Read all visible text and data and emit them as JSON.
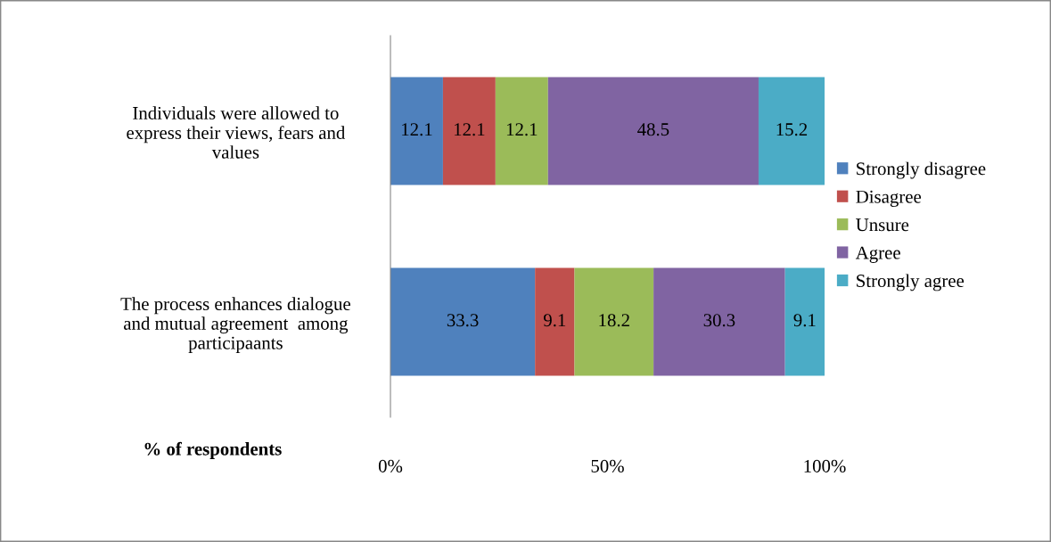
{
  "chart_data": {
    "type": "bar",
    "orientation": "horizontal",
    "stacked": true,
    "xlabel": "% of respondents",
    "categories": [
      "Individuals were allowed to express their views, fears and values",
      "The process enhances dialogue and mutual agreement  among participaants"
    ],
    "series": [
      {
        "name": "Strongly disagree",
        "color": "#4f81bd",
        "values": [
          12.1,
          33.3
        ]
      },
      {
        "name": "Disagree",
        "color": "#c0504d",
        "values": [
          12.1,
          9.1
        ]
      },
      {
        "name": "Unsure",
        "color": "#9bbb59",
        "values": [
          12.1,
          18.2
        ]
      },
      {
        "name": "Agree",
        "color": "#8064a2",
        "values": [
          48.5,
          30.3
        ]
      },
      {
        "name": "Strongly agree",
        "color": "#4bacc6",
        "values": [
          15.2,
          9.1
        ]
      }
    ],
    "xlim": [
      0,
      100
    ],
    "xticks": [
      {
        "value": 0,
        "label": "0%"
      },
      {
        "value": 50,
        "label": "50%"
      },
      {
        "value": 100,
        "label": "100%"
      }
    ],
    "data_labels": true,
    "grid": false,
    "legend": "right"
  }
}
